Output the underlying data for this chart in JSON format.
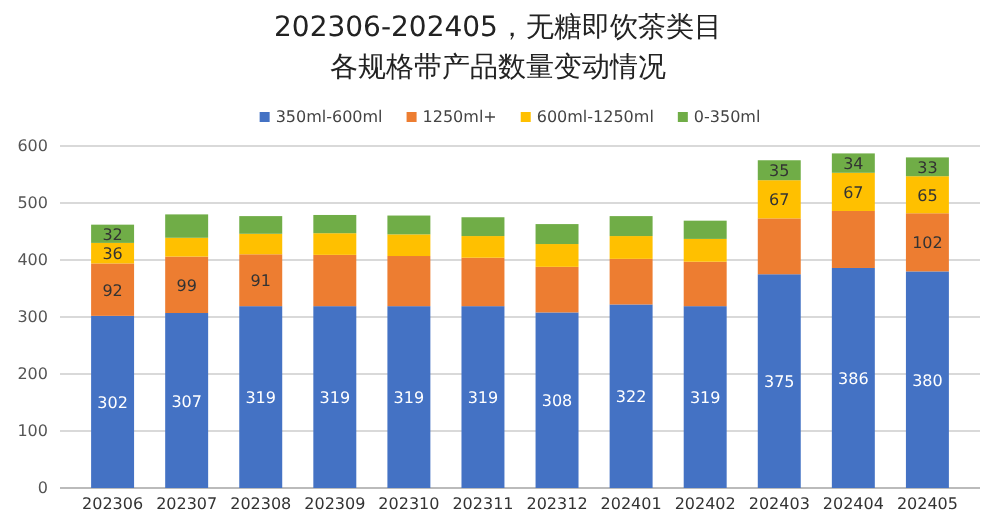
{
  "chart_data": {
    "type": "bar",
    "stacked": true,
    "title": "202306-202405，无糖即饮茶类目",
    "subtitle": "各规格带产品数量变动情况",
    "categories": [
      "202306",
      "202307",
      "202308",
      "202309",
      "202310",
      "202311",
      "202312",
      "202401",
      "202402",
      "202403",
      "202404",
      "202405"
    ],
    "series": [
      {
        "name": "350ml-600ml",
        "color": "#4472c4",
        "values": [
          302,
          307,
          319,
          319,
          319,
          319,
          308,
          322,
          319,
          375,
          386,
          380
        ],
        "value_labels": [
          "302",
          "307",
          "319",
          "319",
          "319",
          "319",
          "308",
          "322",
          "319",
          "375",
          "386",
          "380"
        ]
      },
      {
        "name": "1250ml+",
        "color": "#ed7d31",
        "values": [
          92,
          99,
          91,
          90,
          88,
          85,
          80,
          80,
          78,
          98,
          100,
          102
        ],
        "value_labels": [
          "92",
          "99",
          "91",
          null,
          null,
          null,
          null,
          null,
          null,
          null,
          null,
          "102"
        ]
      },
      {
        "name": "600ml-1250ml",
        "color": "#ffc000",
        "values": [
          36,
          33,
          36,
          38,
          38,
          38,
          40,
          40,
          40,
          67,
          67,
          65
        ],
        "value_labels": [
          "36",
          null,
          null,
          null,
          null,
          null,
          null,
          null,
          null,
          "67",
          "67",
          "65"
        ]
      },
      {
        "name": "0-350ml",
        "color": "#70ad47",
        "values": [
          32,
          41,
          31,
          32,
          33,
          33,
          35,
          35,
          32,
          35,
          34,
          33
        ],
        "value_labels": [
          "32",
          null,
          null,
          null,
          null,
          null,
          null,
          null,
          null,
          "35",
          "34",
          "33"
        ]
      }
    ],
    "ylim": [
      0,
      600
    ],
    "yticks": [
      0,
      100,
      200,
      300,
      400,
      500,
      600
    ],
    "grid": "y",
    "legend": "top"
  }
}
